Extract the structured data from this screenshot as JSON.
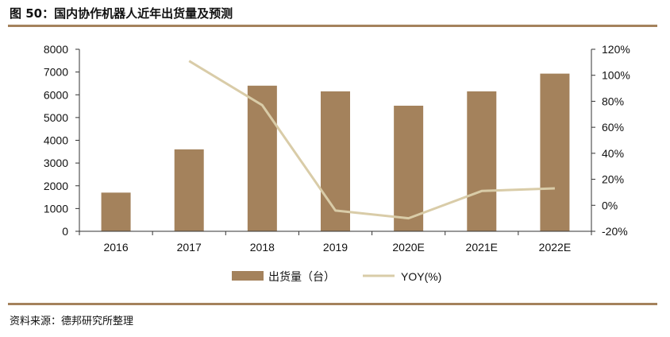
{
  "page": {
    "title": "图 50：国内协作机器人近年出货量及预测",
    "source": "资料来源：德邦研究所整理"
  },
  "colors": {
    "bar": "#A4825C",
    "line": "#D9CCA8",
    "rule": "#A4825C",
    "axis": "#333333"
  },
  "chart_data": {
    "type": "bar",
    "categories": [
      "2016",
      "2017",
      "2018",
      "2019",
      "2020E",
      "2021E",
      "2022E"
    ],
    "series": [
      {
        "name": "出货量（台）",
        "type": "bar",
        "axis": "left",
        "values": [
          1700,
          3600,
          6400,
          6150,
          5520,
          6150,
          6930
        ]
      },
      {
        "name": "YOY(%)",
        "type": "line",
        "axis": "right",
        "values": [
          null,
          111,
          77,
          -4,
          -10,
          11,
          13
        ]
      }
    ],
    "y_left": {
      "lim": [
        0,
        8000
      ],
      "ticks": [
        0,
        1000,
        2000,
        3000,
        4000,
        5000,
        6000,
        7000,
        8000
      ],
      "tick_labels": [
        "0",
        "1000",
        "2000",
        "3000",
        "4000",
        "5000",
        "6000",
        "7000",
        "8000"
      ]
    },
    "y_right": {
      "lim": [
        -20,
        120
      ],
      "ticks": [
        -20,
        0,
        20,
        40,
        60,
        80,
        100,
        120
      ],
      "tick_labels": [
        "-20%",
        "0%",
        "20%",
        "40%",
        "60%",
        "80%",
        "100%",
        "120%"
      ]
    },
    "grid": false,
    "legend_position": "bottom"
  }
}
